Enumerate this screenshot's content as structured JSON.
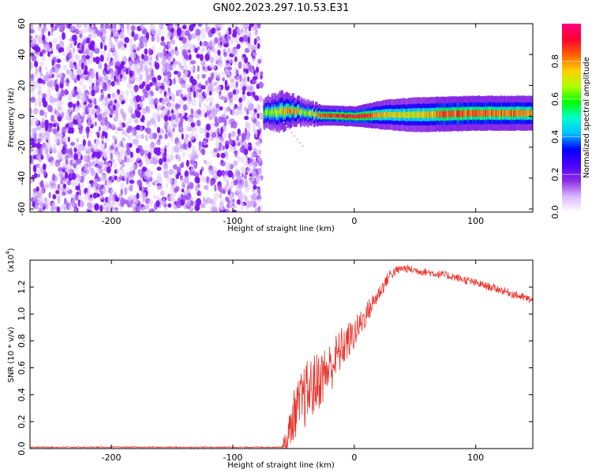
{
  "title": "GN02.2023.297.10.53.E31",
  "chart_data": [
    {
      "type": "heatmap",
      "xlabel": "Height of straight line (km)",
      "ylabel": "Frequency (Hz)",
      "xlim": [
        -267,
        147
      ],
      "ylim": [
        -62,
        60
      ],
      "x_ticks": [
        -200,
        -100,
        0,
        100
      ],
      "x_tick_labels": [
        "-200",
        "-100",
        "0",
        "100"
      ],
      "y_ticks": [
        -60,
        -40,
        -20,
        0,
        20,
        40,
        60
      ],
      "y_tick_labels": [
        "-60",
        "-40",
        "-20",
        "0",
        "20",
        "40",
        "60"
      ],
      "noise_region_x": [
        -267,
        -75
      ],
      "signal_band": [
        {
          "x": -75,
          "freq": 2,
          "width": 6,
          "peak": 0.55
        },
        {
          "x": -60,
          "freq": 3,
          "width": 8,
          "peak": 0.7
        },
        {
          "x": -50,
          "freq": 4,
          "width": 6,
          "peak": 0.75
        },
        {
          "x": -40,
          "freq": 2,
          "width": 5,
          "peak": 0.6
        },
        {
          "x": -25,
          "freq": 0.5,
          "width": 4,
          "peak": 0.85
        },
        {
          "x": 0,
          "freq": 0,
          "width": 4,
          "peak": 0.9
        },
        {
          "x": 25,
          "freq": 1,
          "width": 6,
          "peak": 0.7
        },
        {
          "x": 50,
          "freq": 1,
          "width": 7,
          "peak": 0.65
        },
        {
          "x": 75,
          "freq": 1.5,
          "width": 7,
          "peak": 0.8
        },
        {
          "x": 100,
          "freq": 2,
          "width": 7,
          "peak": 0.8
        },
        {
          "x": 147,
          "freq": 2,
          "width": 7,
          "peak": 0.75
        }
      ],
      "colorbar": {
        "label": "Normalized spectral amplitude",
        "ticks": [
          0.0,
          0.2,
          0.4,
          0.6,
          0.8
        ],
        "tick_labels": [
          "0.0",
          "0.2",
          "0.4",
          "0.6",
          "0.8"
        ],
        "range": [
          0,
          1
        ],
        "colors": [
          "#ffffff",
          "#d9b8ff",
          "#8a2be2",
          "#4b00ff",
          "#0000ff",
          "#00bfff",
          "#00ffcc",
          "#00ff00",
          "#b0ff00",
          "#ffd000",
          "#ff6000",
          "#ff0030",
          "#ff0080"
        ]
      }
    },
    {
      "type": "line",
      "xlabel": "Height of straight line (km)",
      "ylabel": "SNR (10 * v/v)",
      "y_multiplier_label": "(x10",
      "y_multiplier_exp": "4",
      "y_multiplier_close": ")",
      "xlim": [
        -267,
        147
      ],
      "ylim": [
        0,
        1.4
      ],
      "x_ticks": [
        -200,
        -100,
        0,
        100
      ],
      "x_tick_labels": [
        "-200",
        "-100",
        "0",
        "100"
      ],
      "y_ticks": [
        0.0,
        0.2,
        0.4,
        0.6,
        0.8,
        1.0,
        1.2
      ],
      "y_tick_labels": [
        "0.0",
        "0.2",
        "0.4",
        "0.6",
        "0.8",
        "1.0",
        "1.2"
      ],
      "color": "#e8342c",
      "trend": [
        {
          "x": -267,
          "y": 0.01
        },
        {
          "x": -60,
          "y": 0.01
        },
        {
          "x": -55,
          "y": 0.05
        },
        {
          "x": -50,
          "y": 0.25
        },
        {
          "x": -40,
          "y": 0.4
        },
        {
          "x": -30,
          "y": 0.5
        },
        {
          "x": -20,
          "y": 0.6
        },
        {
          "x": -10,
          "y": 0.75
        },
        {
          "x": 0,
          "y": 0.85
        },
        {
          "x": 10,
          "y": 1.0
        },
        {
          "x": 20,
          "y": 1.15
        },
        {
          "x": 30,
          "y": 1.3
        },
        {
          "x": 40,
          "y": 1.34
        },
        {
          "x": 60,
          "y": 1.31
        },
        {
          "x": 80,
          "y": 1.28
        },
        {
          "x": 100,
          "y": 1.23
        },
        {
          "x": 120,
          "y": 1.18
        },
        {
          "x": 147,
          "y": 1.1
        }
      ],
      "noise_amplitude": [
        {
          "x": -267,
          "a": 0.004
        },
        {
          "x": -60,
          "a": 0.004
        },
        {
          "x": -55,
          "a": 0.15
        },
        {
          "x": -40,
          "a": 0.25
        },
        {
          "x": -20,
          "a": 0.2
        },
        {
          "x": 0,
          "a": 0.12
        },
        {
          "x": 20,
          "a": 0.06
        },
        {
          "x": 40,
          "a": 0.03
        },
        {
          "x": 147,
          "a": 0.03
        }
      ]
    }
  ]
}
